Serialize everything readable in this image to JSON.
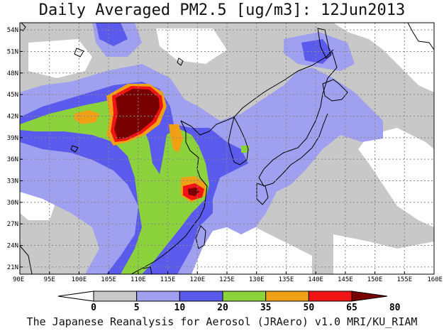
{
  "title": "Daily Averaged PM2.5 [ug/m3]: 12Jun2013",
  "footer": "The Japanese Reanalysis for Aerosol (JRAero) v1.0 MRI/KU_RIAM",
  "map": {
    "lon_range": [
      90,
      160
    ],
    "lat_range": [
      20,
      55
    ],
    "lon_ticks": [
      "90E",
      "95E",
      "100E",
      "105E",
      "110E",
      "115E",
      "120E",
      "125E",
      "130E",
      "135E",
      "140E",
      "145E",
      "150E",
      "155E",
      "160E"
    ],
    "lat_ticks": [
      "54N",
      "51N",
      "48N",
      "45N",
      "42N",
      "39N",
      "36N",
      "33N",
      "30N",
      "27N",
      "24N",
      "21N"
    ]
  },
  "colorbar": {
    "labels": [
      "0",
      "5",
      "10",
      "20",
      "35",
      "50",
      "65",
      "80"
    ],
    "colors": [
      "#ffffff",
      "#c8c8c8",
      "#a0a0f0",
      "#5a5aec",
      "#8cd23c",
      "#f0a014",
      "#f01414",
      "#780000"
    ]
  }
}
